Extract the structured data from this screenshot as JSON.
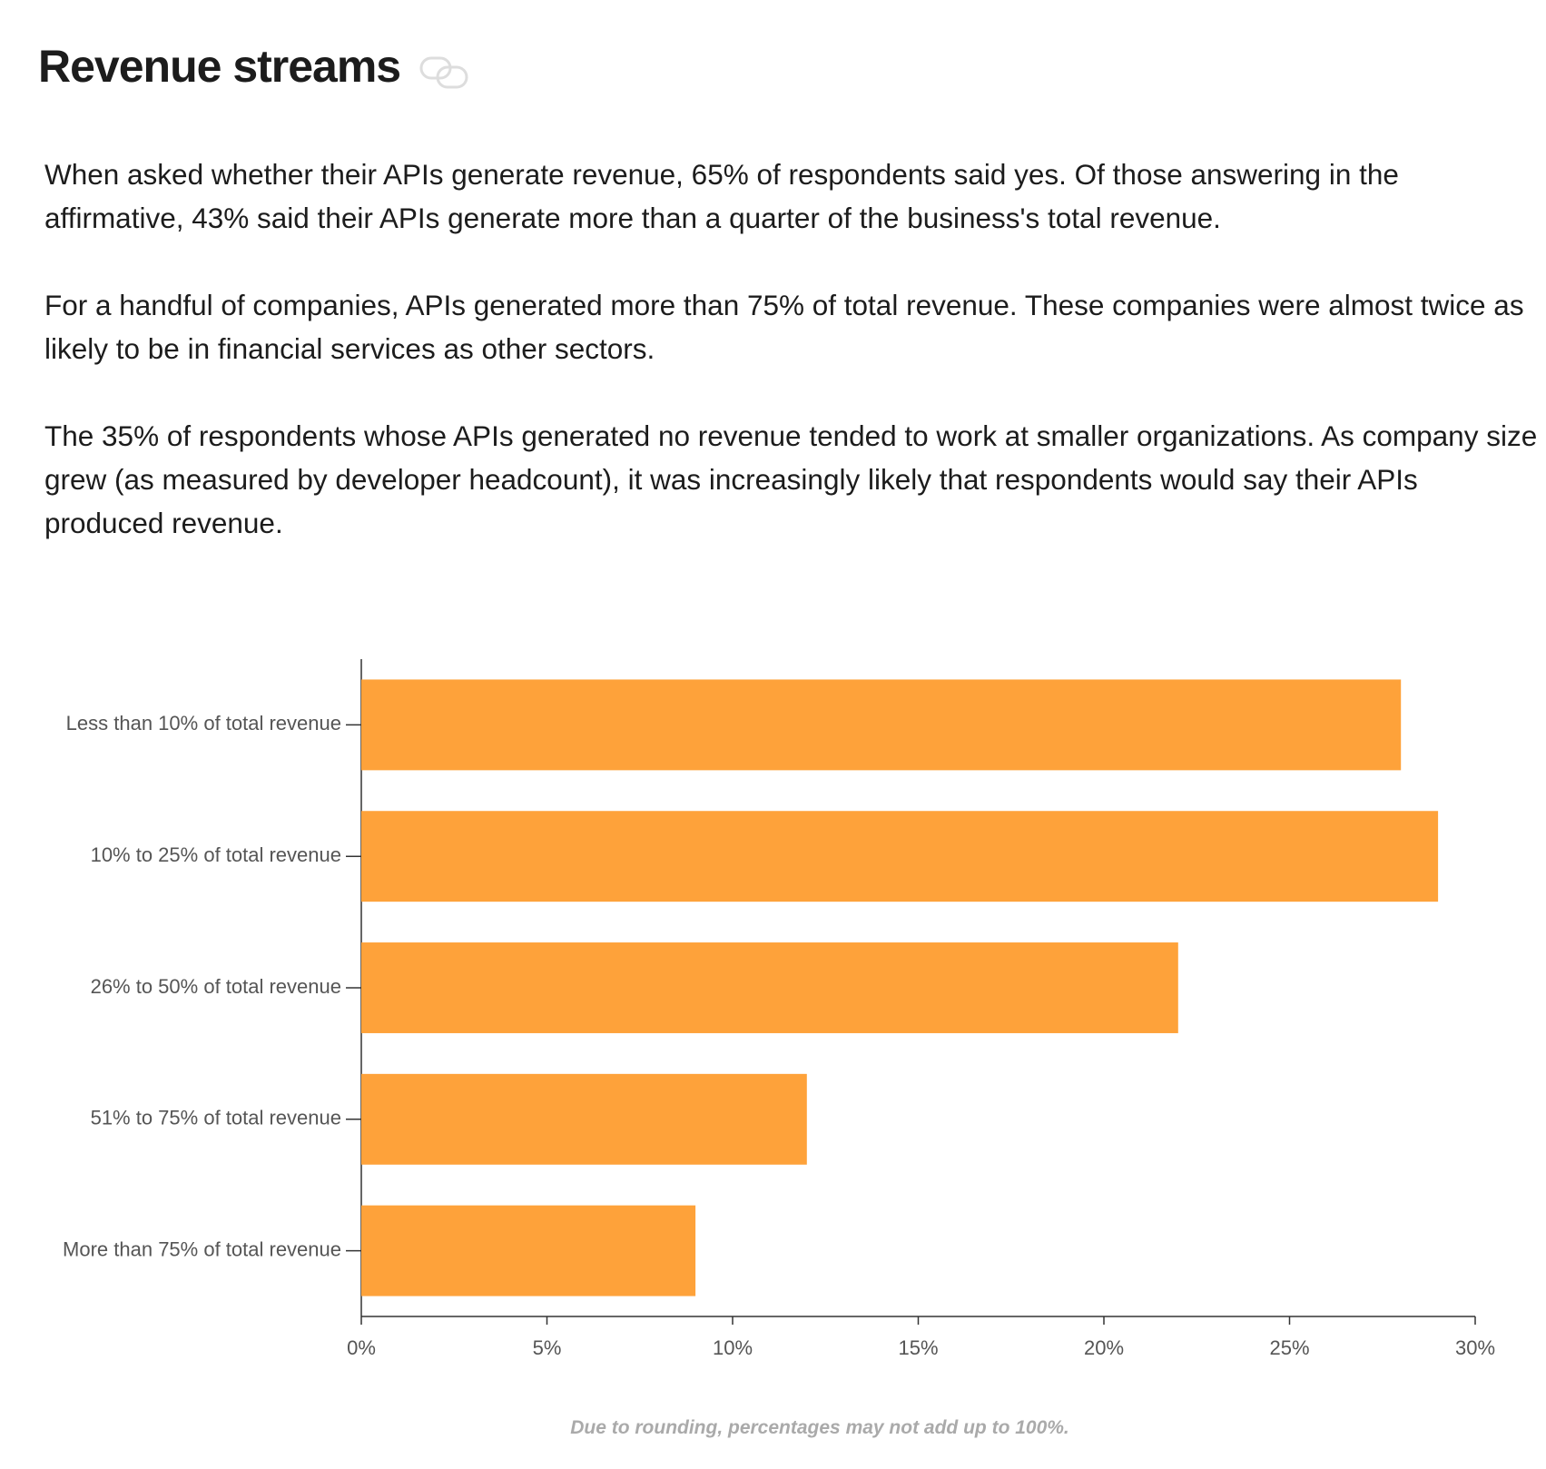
{
  "title": "Revenue streams",
  "paragraphs": [
    "When asked whether their APIs generate revenue, 65% of respondents said yes. Of those answering in the affirmative, 43% said their APIs generate more than a quarter of the business's total revenue.",
    "For a handful of companies, APIs generated more than 75% of total revenue. These companies were almost twice as likely to be in financial services as other sectors.",
    "The 35% of respondents whose APIs generated no revenue tended to work at smaller organizations. As company size grew (as measured by developer headcount), it was increasingly likely that respondents would say their APIs produced revenue."
  ],
  "chart_data": {
    "type": "bar",
    "orientation": "horizontal",
    "categories": [
      "Less than 10% of total revenue",
      "10% to 25% of total revenue",
      "26% to 50% of total revenue",
      "51% to 75% of total revenue",
      "More than 75% of total revenue"
    ],
    "values": [
      28,
      29,
      22,
      12,
      9
    ],
    "color": "#fea23a",
    "xlim": [
      0,
      30
    ],
    "xticks": [
      {
        "value": 0,
        "label": "0%"
      },
      {
        "value": 5,
        "label": "5%"
      },
      {
        "value": 10,
        "label": "10%"
      },
      {
        "value": 15,
        "label": "15%"
      },
      {
        "value": 20,
        "label": "20%"
      },
      {
        "value": 25,
        "label": "25%"
      },
      {
        "value": 30,
        "label": "30%"
      }
    ],
    "grid": false
  },
  "footnote": "Due to rounding, percentages may not add up to 100%."
}
